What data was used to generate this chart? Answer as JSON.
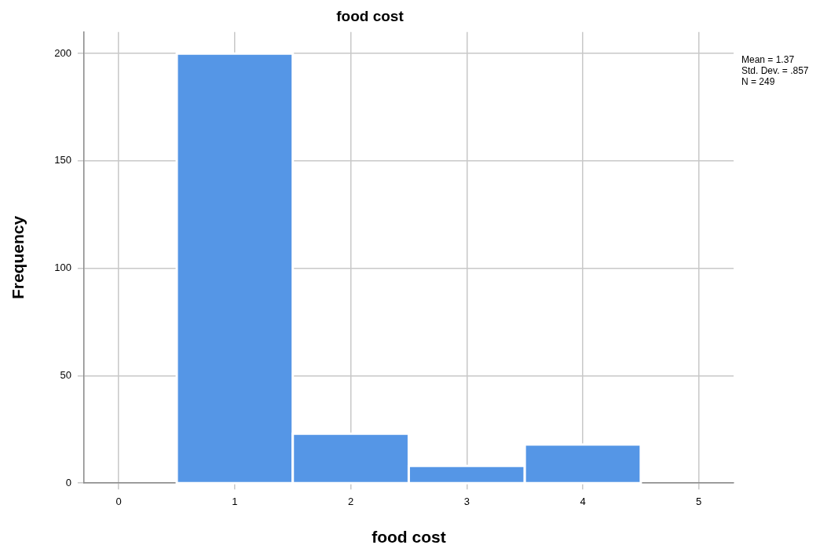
{
  "chart_data": {
    "type": "histogram",
    "title": "food cost",
    "xlabel": "food cost",
    "ylabel": "Frequency",
    "bins": [
      0.5,
      1.5,
      2.5,
      3.5,
      4.5
    ],
    "values": [
      200,
      23,
      8,
      18
    ],
    "color": "#5596e6",
    "xlim": [
      -0.3,
      5.3
    ],
    "xticks": [
      0,
      1,
      2,
      3,
      4,
      5
    ],
    "ylim": [
      0,
      210
    ],
    "yticks": [
      0,
      50,
      100,
      150,
      200
    ],
    "grid": true,
    "annotations": [
      "Mean = 1.37",
      "Std. Dev. = .857",
      "N = 249"
    ]
  }
}
